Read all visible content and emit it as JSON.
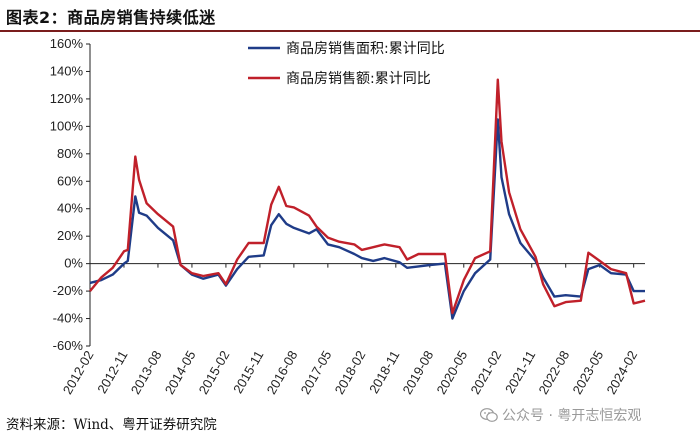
{
  "title": "图表2：商品房销售持续低迷",
  "source": "资料来源：Wind、粤开证券研究院",
  "watermark": {
    "text": "公众号 · 粤开志恒宏观",
    "icon": "wechat-icon"
  },
  "colors": {
    "series1": "#1f3c88",
    "series2": "#c0202a",
    "title_rule": "#7a1d1d"
  },
  "chart_data": {
    "type": "line",
    "title": "",
    "xlabel": "",
    "ylabel": "",
    "ylim": [
      -60,
      160
    ],
    "yticks": [
      "160%",
      "140%",
      "120%",
      "100%",
      "80%",
      "60%",
      "40%",
      "20%",
      "0%",
      "-20%",
      "-40%",
      "-60%"
    ],
    "ytick_values": [
      160,
      140,
      120,
      100,
      80,
      60,
      40,
      20,
      0,
      -20,
      -40,
      -60
    ],
    "xticks": [
      "2012-02",
      "2012-11",
      "2013-08",
      "2014-05",
      "2015-02",
      "2015-11",
      "2016-08",
      "2017-05",
      "2018-02",
      "2018-11",
      "2019-08",
      "2020-05",
      "2021-02",
      "2021-11",
      "2022-08",
      "2023-05",
      "2024-02"
    ],
    "x_start": "2012-02",
    "x_end": "2024-05",
    "legend_position": "top-right",
    "grid": false,
    "series": [
      {
        "name": "商品房销售面积:累计同比",
        "color": "#1f3c88",
        "points": [
          [
            "2012-02",
            -14
          ],
          [
            "2012-05",
            -12
          ],
          [
            "2012-08",
            -8
          ],
          [
            "2012-11",
            0
          ],
          [
            "2012-12",
            2
          ],
          [
            "2013-02",
            49
          ],
          [
            "2013-03",
            37
          ],
          [
            "2013-05",
            35
          ],
          [
            "2013-08",
            26
          ],
          [
            "2013-12",
            17
          ],
          [
            "2014-02",
            -1
          ],
          [
            "2014-05",
            -8
          ],
          [
            "2014-08",
            -11
          ],
          [
            "2014-12",
            -8
          ],
          [
            "2015-02",
            -16
          ],
          [
            "2015-05",
            -4
          ],
          [
            "2015-08",
            5
          ],
          [
            "2015-12",
            6
          ],
          [
            "2016-02",
            28
          ],
          [
            "2016-04",
            36
          ],
          [
            "2016-06",
            29
          ],
          [
            "2016-08",
            26
          ],
          [
            "2016-12",
            22
          ],
          [
            "2017-02",
            25
          ],
          [
            "2017-05",
            14
          ],
          [
            "2017-08",
            12
          ],
          [
            "2017-12",
            7
          ],
          [
            "2018-02",
            4
          ],
          [
            "2018-05",
            2
          ],
          [
            "2018-08",
            4
          ],
          [
            "2018-12",
            1
          ],
          [
            "2019-02",
            -3
          ],
          [
            "2019-05",
            -2
          ],
          [
            "2019-08",
            -1
          ],
          [
            "2019-12",
            0
          ],
          [
            "2020-02",
            -40
          ],
          [
            "2020-05",
            -20
          ],
          [
            "2020-08",
            -7
          ],
          [
            "2020-12",
            3
          ],
          [
            "2021-02",
            105
          ],
          [
            "2021-03",
            63
          ],
          [
            "2021-05",
            36
          ],
          [
            "2021-08",
            15
          ],
          [
            "2021-12",
            2
          ],
          [
            "2022-02",
            -10
          ],
          [
            "2022-05",
            -24
          ],
          [
            "2022-08",
            -23
          ],
          [
            "2022-12",
            -24
          ],
          [
            "2023-02",
            -4
          ],
          [
            "2023-05",
            -1
          ],
          [
            "2023-08",
            -7
          ],
          [
            "2023-12",
            -8
          ],
          [
            "2024-02",
            -20
          ],
          [
            "2024-05",
            -20
          ]
        ]
      },
      {
        "name": "商品房销售额:累计同比",
        "color": "#c0202a",
        "points": [
          [
            "2012-02",
            -20
          ],
          [
            "2012-05",
            -10
          ],
          [
            "2012-08",
            -3
          ],
          [
            "2012-11",
            9
          ],
          [
            "2012-12",
            10
          ],
          [
            "2013-02",
            78
          ],
          [
            "2013-03",
            61
          ],
          [
            "2013-05",
            44
          ],
          [
            "2013-08",
            36
          ],
          [
            "2013-12",
            27
          ],
          [
            "2014-02",
            -1
          ],
          [
            "2014-05",
            -7
          ],
          [
            "2014-08",
            -9
          ],
          [
            "2014-12",
            -7
          ],
          [
            "2015-02",
            -15
          ],
          [
            "2015-05",
            3
          ],
          [
            "2015-08",
            15
          ],
          [
            "2015-12",
            15
          ],
          [
            "2016-02",
            43
          ],
          [
            "2016-04",
            56
          ],
          [
            "2016-06",
            42
          ],
          [
            "2016-08",
            41
          ],
          [
            "2016-12",
            35
          ],
          [
            "2017-02",
            27
          ],
          [
            "2017-05",
            19
          ],
          [
            "2017-08",
            16
          ],
          [
            "2017-12",
            14
          ],
          [
            "2018-02",
            10
          ],
          [
            "2018-05",
            12
          ],
          [
            "2018-08",
            14
          ],
          [
            "2018-12",
            12
          ],
          [
            "2019-02",
            3
          ],
          [
            "2019-05",
            7
          ],
          [
            "2019-08",
            7
          ],
          [
            "2019-12",
            7
          ],
          [
            "2020-02",
            -36
          ],
          [
            "2020-05",
            -12
          ],
          [
            "2020-08",
            4
          ],
          [
            "2020-12",
            9
          ],
          [
            "2021-02",
            134
          ],
          [
            "2021-03",
            89
          ],
          [
            "2021-05",
            52
          ],
          [
            "2021-08",
            25
          ],
          [
            "2021-12",
            5
          ],
          [
            "2022-02",
            -15
          ],
          [
            "2022-05",
            -31
          ],
          [
            "2022-08",
            -28
          ],
          [
            "2022-12",
            -27
          ],
          [
            "2023-02",
            8
          ],
          [
            "2023-05",
            2
          ],
          [
            "2023-08",
            -4
          ],
          [
            "2023-12",
            -7
          ],
          [
            "2024-02",
            -29
          ],
          [
            "2024-05",
            -27
          ]
        ]
      }
    ]
  }
}
